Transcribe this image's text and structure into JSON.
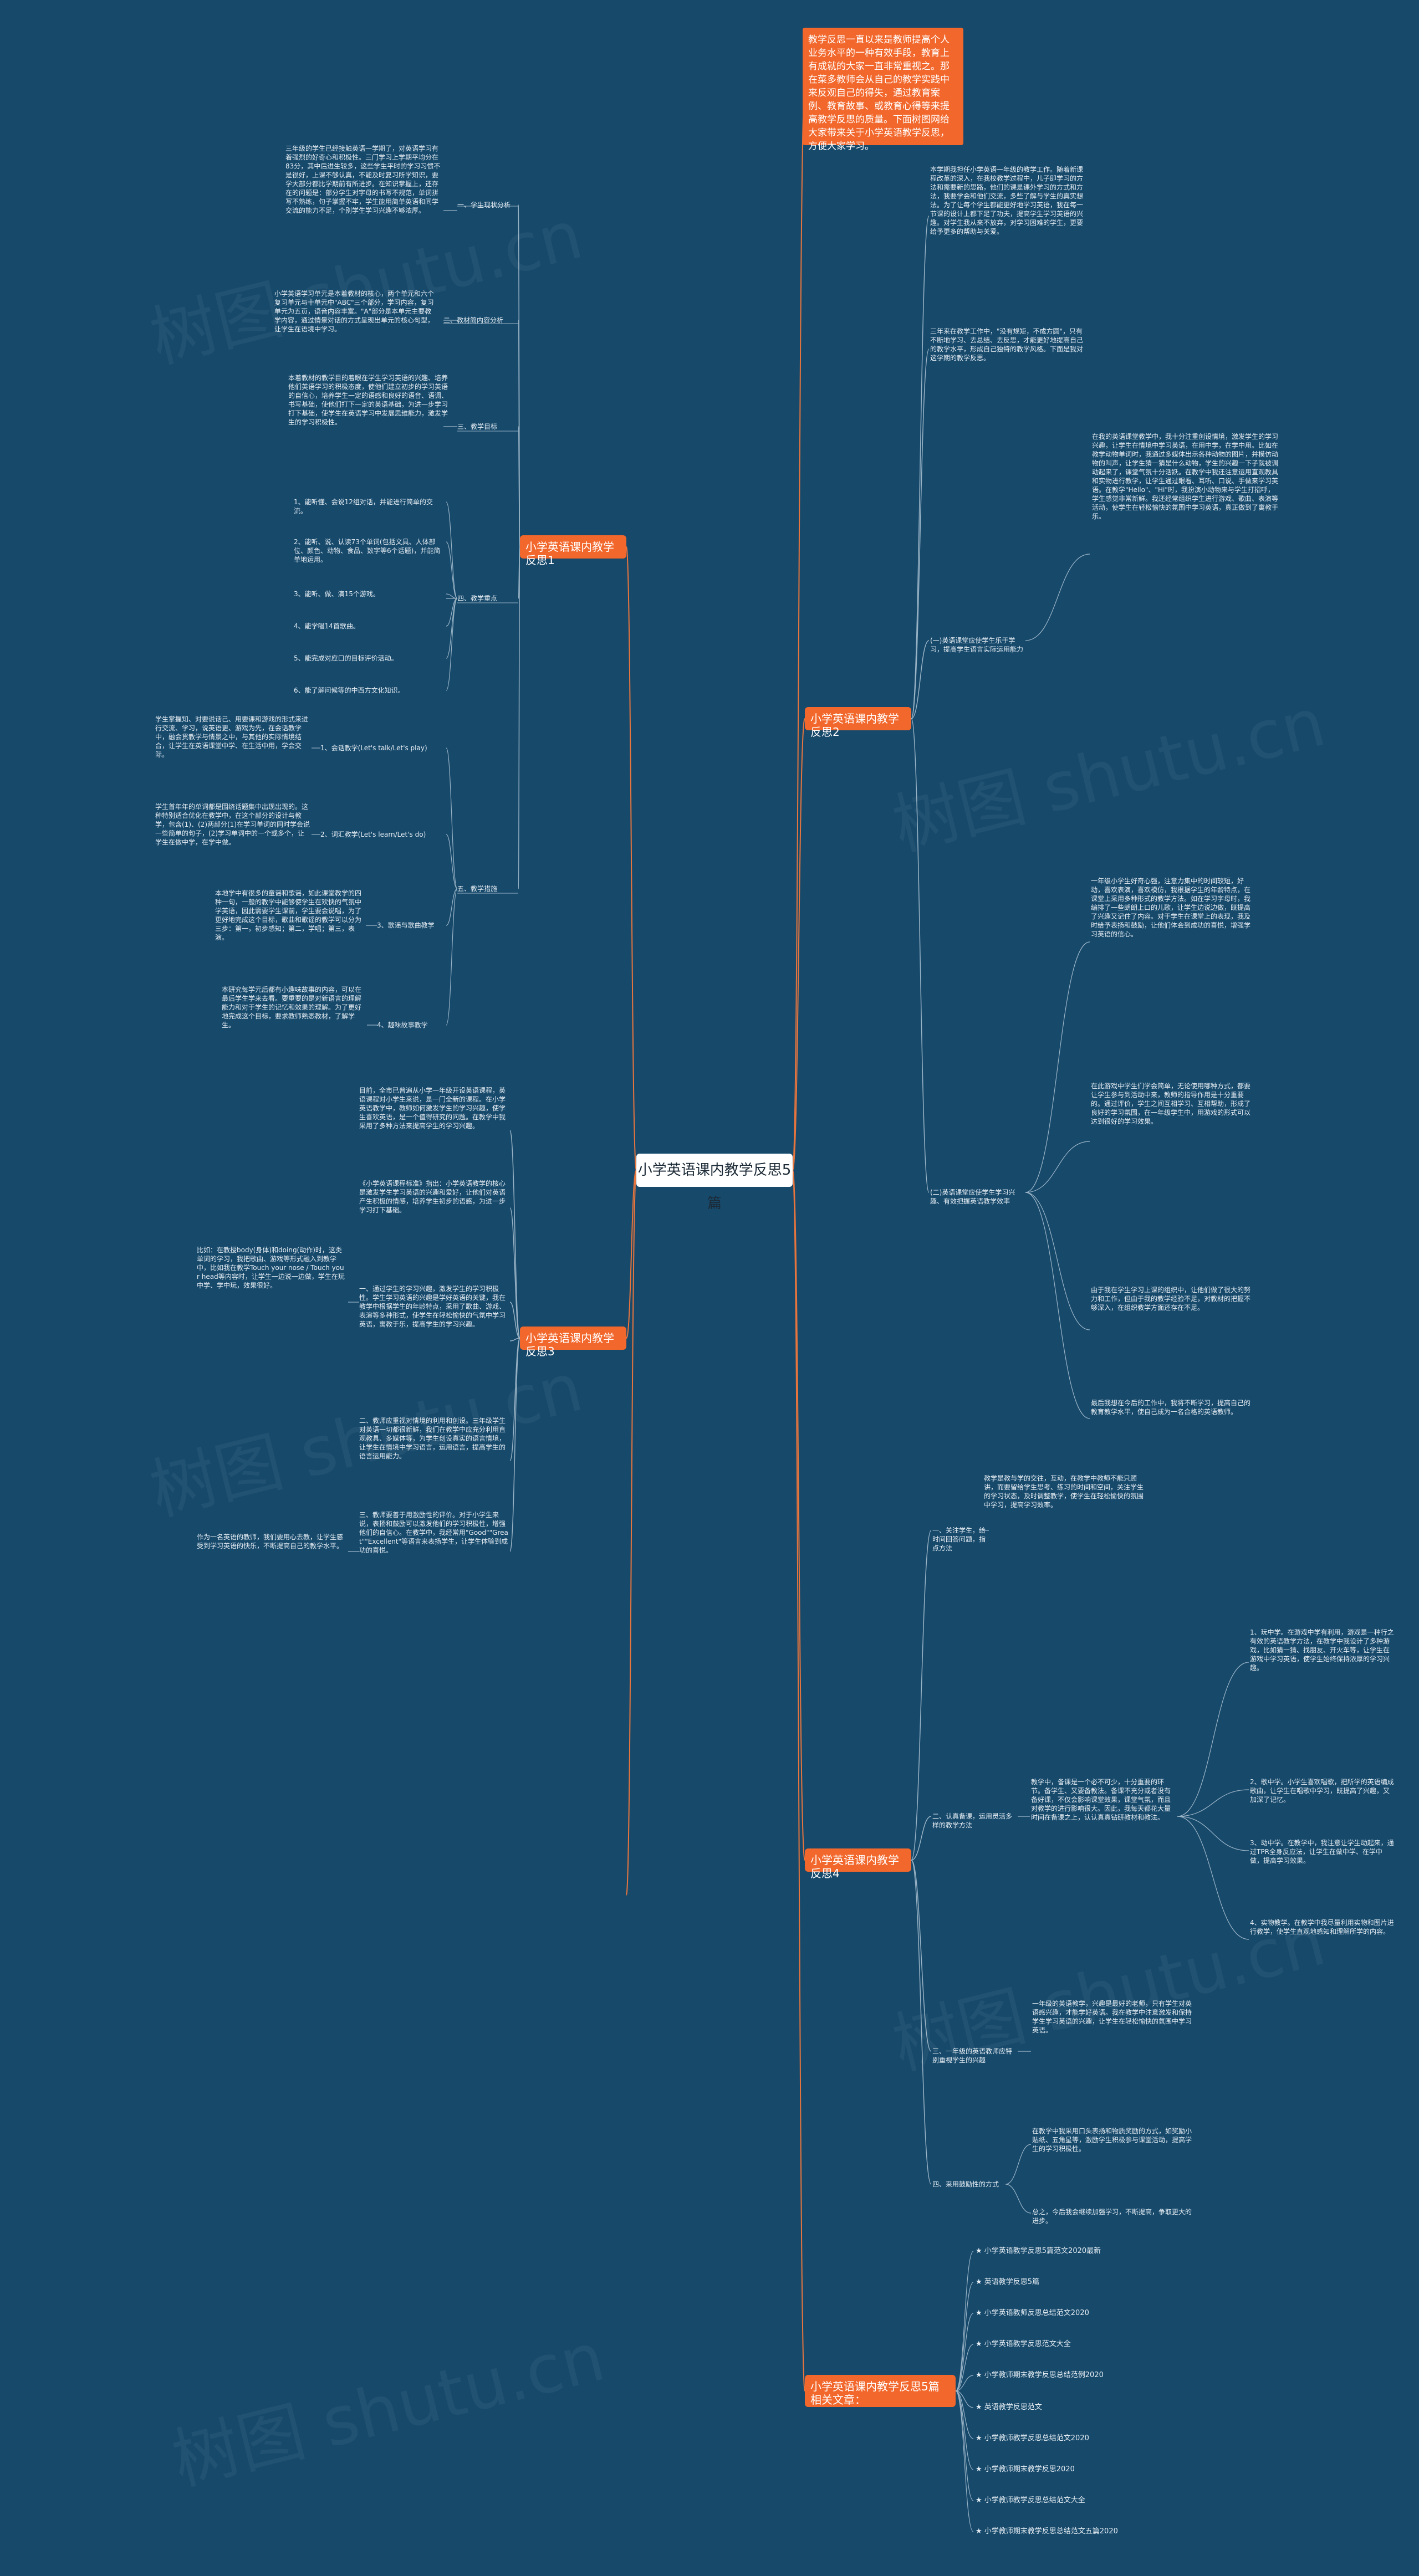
{
  "root": "小学英语课内教学反思5篇",
  "intro": "教学反思一直以来是教师提高个人业务水平的一种有效手段，教育上有成就的大家一直非常重视之。那在菜多教师会从自己的教学实践中来反观自己的得失，通过教育案例、教育故事、或教育心得等来提高教学反思的质量。下面树图网给大家带来关于小学英语教学反思，方便大家学习。",
  "b1": {
    "label": "小学英语课内教学反思1",
    "s1": {
      "label": "一、学生现状分析",
      "text": "三年级的学生已经接触英语一学期了，对英语学习有着强烈的好奇心和积极性。三门学习上学期平均分在83分，其中后进生较多，这些学生平时的学习习惯不是很好，上课不够认真，不能及时复习所学知识，要学大部分都比学期前有所进步。在知识掌握上，还存在的问题是：部分学生对字母的书写不规范，单词拼写不熟练，句子掌握不牢，学生能用简单英语和同学交流的能力不足，个别学生学习兴趣不够浓厚。"
    },
    "s2": {
      "label": "二、教材简内容分析",
      "text": "小学英语学习单元是本着教材的核心，两个单元和六个复习单元与十单元中\"ABC\"三个部分，学习内容，复习单元为五页，语音内容丰富。\"A\"部分是本单元主要教学内容，通过情景对话的方式呈现出单元的核心句型，让学生在语境中学习。"
    },
    "s3": {
      "label": "三、教学目标",
      "text": "本着教材的教学目的着眼在学生学习英语的兴趣、培养他们英语学习的积极态度，使他们建立初步的学习英语的自信心，培养学生一定的语感和良好的语音、语调、书写基础，使他们打下一定的英语基础，为进一步学习打下基础，使学生在英语学习中发展思维能力，激发学生的学习积极性。"
    },
    "s4": {
      "label": "四、教学重点",
      "items": [
        "1、能听懂、会说12组对话，并能进行简单的交流。",
        "2、能听、说、认读73个单词(包括文具、人体部位、颜色、动物、食品、数字等6个话题)，并能简单地运用。",
        "3、能听、做、演15个游戏。",
        "4、能学唱14首歌曲。",
        "5、能完成对应口的目标评价活动。",
        "6、能了解问候等的中西方文化知识。"
      ]
    },
    "s5": {
      "label": "五、教学措施",
      "items": [
        {
          "label": "1、会话教学(Let's talk/Let's play)",
          "text": "学生掌握知、对要说话己、用要课和游戏的形式来进行交流、学习，说英语更、游戏为先，在会话教学中，融会贯教学与情景之中，与其他的实际情境结合，让学生在英语课堂中学、在生活中用，学会交际。"
        },
        {
          "label": "2、词汇教学(Let's learn/Let's do)",
          "text": "学生首年年的单词都是围绕话题集中出现出现的。这种特别适合优化在教学中，在这个部分的设计与教学，包含(1)、(2)两部分(1)在学习单词的同时学会说一些简单的句子，(2)学习单词中的一个或多个，让学生在做中学，在学中做。"
        },
        {
          "label": "3、歌谣与歌曲教学",
          "text": "本地学中有很多的童谣和歌谣，如此课堂教学的四种一句，一般的教学中能够使学生在欢快的气氛中学英语，因此需要学生课前，学生要会说唱，为了更好地完成这个目标，歌曲和歌谣的教学可以分为三步：第一，初步感知；第二，学唱；第三，表演。"
        },
        {
          "label": "4、趣味故事教学",
          "text": "本研究每学元后都有小趣味故事的内容，可以在最后学生学来去看。要重要的是对新语言的理解能力和对于学生的记忆和效果的理解。为了更好地完成这个目标，要求教师熟悉教材，了解学生。"
        }
      ]
    }
  },
  "b2": {
    "label": "小学英语课内教学反思2",
    "text1": "本学期我担任小学英语一年级的教学工作。随着新课程改革的深入，在我校教学过程中，儿子即学习的方法和需要新的思路，他们的课是课外学习的方式和方法，我要学会和他们交流，多些了解与学生的真实想法。为了让每个学生都能更好地学习英语，我在每一节课的设计上都下足了功夫，提高学生学习英语的兴趣。对学生我从来不放弃，对学习困难的学生，更要给予更多的帮助与关爱。",
    "text2": "三年来在教学工作中，\"没有规矩，不成方圆\"，只有不断地学习、去总结、去反思，才能更好地提高自己的教学水平，形成自己独特的教学风格。下面是我对这学期的教学反思。",
    "sub1": {
      "label": "(一)英语课堂应使学生乐于学习，提高学生语言实际运用能力",
      "text": "在我的英语课堂教学中，我十分注重创设情境，激发学生的学习兴趣，让学生在情境中学习英语，在用中学，在学中用。比如在教学动物单词时，我通过多媒体出示各种动物的图片，并模仿动物的叫声，让学生猜一猜是什么动物，学生的兴趣一下子就被调动起来了，课堂气氛十分活跃。在教学中我还注意运用直观教具和实物进行教学，让学生通过眼看、耳听、口说、手做来学习英语。在教学\"Hello\"、\"Hi\"时，我扮演小动物来与学生打招呼，学生感觉非常新鲜。我还经常组织学生进行游戏、歌曲、表演等活动，使学生在轻松愉快的氛围中学习英语，真正做到了寓教于乐。"
    },
    "sub2": {
      "label": "(二)英语课堂应使学生学习兴趣、有效把握英语教学效率",
      "text1": "一年级小学生好奇心强，注意力集中的时间较短，好动，喜欢表演，喜欢模仿，我根据学生的年龄特点，在课堂上采用多种形式的教学方法。如在学习字母时，我编排了一些朗朗上口的儿歌，让学生边说边做，既提高了兴趣又记住了内容。对于学生在课堂上的表现，我及时给予表扬和鼓励，让他们体会到成功的喜悦，增强学习英语的信心。",
      "text2": "在此游戏中学生们学会简单，无论使用哪种方式，都要让学生参与到活动中来，教师的指导作用是十分重要的。通过评价，学生之间互相学习、互相帮助，形成了良好的学习氛围，在一年级学生中，用游戏的形式可以达到很好的学习效果。",
      "text3": "由于我在学生学习上课的组织中，让他们做了很大的努力和工作，但由于我的教学经验不足，对教材的把握不够深入，在组织教学方面还存在不足。",
      "text4": "最后我想在今后的工作中，我将不断学习，提高自己的教育教学水平，使自己成为一名合格的英语教师。"
    }
  },
  "b3": {
    "label": "小学英语课内教学反思3",
    "text1": "目前，全市已普遍从小学一年级开设英语课程，英语课程对小学生来说，是一门全新的课程。在小学英语教学中，教师如何激发学生的学习兴趣，使学生喜欢英语，是一个值得研究的问题。在教学中我采用了多种方法来提高学生的学习兴趣。",
    "text2": "《小学英语课程标准》指出：小学英语教学的核心是激发学生学习英语的兴趣和爱好，让他们对英语产生积极的情感，培养学生初步的语感，为进一步学习打下基础。",
    "text3": "比如：在教授body(身体)和doing(动作)时，这类单词的学习，我把歌曲、游戏等形式融入到教学中，比如我在教学Touch your nose / Touch your head等内容时，让学生一边说一边做，学生在玩中学、学中玩，效果很好。",
    "sub1": {
      "label": "一、通过学生的学习兴趣，激发学生的学习积极性",
      "text": "一、通过学生的学习兴趣，激发学生的学习积极性。学生学习英语的兴趣是学好英语的关键，我在教学中根据学生的年龄特点，采用了歌曲、游戏、表演等多种形式，使学生在轻松愉快的气氛中学习英语，寓教于乐，提高学生的学习兴趣。"
    },
    "sub2": {
      "label": "二、教师应重视对情境的利用和创设",
      "text": "二、教师应重视对情境的利用和创设。三年级学生对英语一切都很新鲜，我们在教学中应充分利用直观教具、多媒体等，为学生创设真实的语言情境，让学生在情境中学习语言，运用语言，提高学生的语言运用能力。"
    },
    "sub3": {
      "label": "三、教师要善于用激励性的评价",
      "text": "三、教师要善于用激励性的评价。对于小学生来说，表扬和鼓励可以激发他们的学习积极性，增强他们的自信心。在教学中，我经常用\"Good\"\"Great\"\"Excellent\"等语言来表扬学生，让学生体验到成功的喜悦。"
    },
    "text4": "作为一名英语的教师，我们要用心去教，让学生感受到学习英语的快乐，不断提高自己的教学水平。"
  },
  "b4": {
    "label": "小学英语课内教学反思4",
    "sub1": {
      "label": "一、关注学生，给时间回答问题，指点方法",
      "text": "教学是教与学的交往，互动，在教学中教师不能只顾讲，而要留给学生思考、练习的时间和空间，关注学生的学习状态，及时调整教学，使学生在轻松愉快的氛围中学习，提高学习效率。"
    },
    "sub2": {
      "label": "二、认真备课，运用灵活多样的教学方法",
      "text": "教学中，备课是一个必不可少，十分重要的环节。备学生、又要备教法。备课不充分或者没有备好课，不仅会影响课堂效果，课堂气氛，而且对教学的进行影响很大。因此，我每天都花大量时间在备课之上，认认真真钻研教材和教法。",
      "items": [
        "1、玩中学。在游戏中学有利用，游戏是一种行之有效的英语教学方法，在教学中我设计了多种游戏，比如猜一猜、找朋友、开火车等，让学生在游戏中学习英语，使学生始终保持浓厚的学习兴趣。",
        "2、歌中学。小学生喜欢唱歌，把所学的英语编成歌曲，让学生在唱歌中学习，既提高了兴趣，又加深了记忆。",
        "3、动中学。在教学中，我注意让学生动起来，通过TPR全身反应法，让学生在做中学、在学中做，提高学习效果。",
        "4、实物教学。在教学中我尽量利用实物和图片进行教学，使学生直观地感知和理解所学的内容。"
      ]
    },
    "sub3": {
      "label": "三、一年级的英语教师应特别重视学生的兴趣",
      "text": "一年级的英语教学，兴趣是最好的老师，只有学生对英语感兴趣，才能学好英语。我在教学中注意激发和保持学生学习英语的兴趣，让学生在轻松愉快的氛围中学习英语。"
    },
    "sub4": {
      "label": "四、采用鼓励性的方式",
      "text1": "在教学中我采用口头表扬和物质奖励的方式，如奖励小贴纸、五角星等，激励学生积极参与课堂活动，提高学生的学习积极性。",
      "text2": "总之，今后我会继续加强学习，不断提高，争取更大的进步。"
    }
  },
  "b5": {
    "label": "小学英语课内教学反思5篇相关文章：",
    "items": [
      "★ 小学英语教学反思5篇范文2020最新",
      "★ 英语教学反思5篇",
      "★ 小学英语教师反思总结范文2020",
      "★ 小学英语教学反思范文大全",
      "★ 小学教师期末教学反思总结范例2020",
      "★ 英语教学反思范文",
      "★ 小学教师教学反思总结范文2020",
      "★ 小学教师期末教学反思2020",
      "★ 小学教师教学反思总结范文大全",
      "★ 小学教师期末教学反思总结范文五篇2020"
    ]
  },
  "watermark": "树图 shutu.cn"
}
